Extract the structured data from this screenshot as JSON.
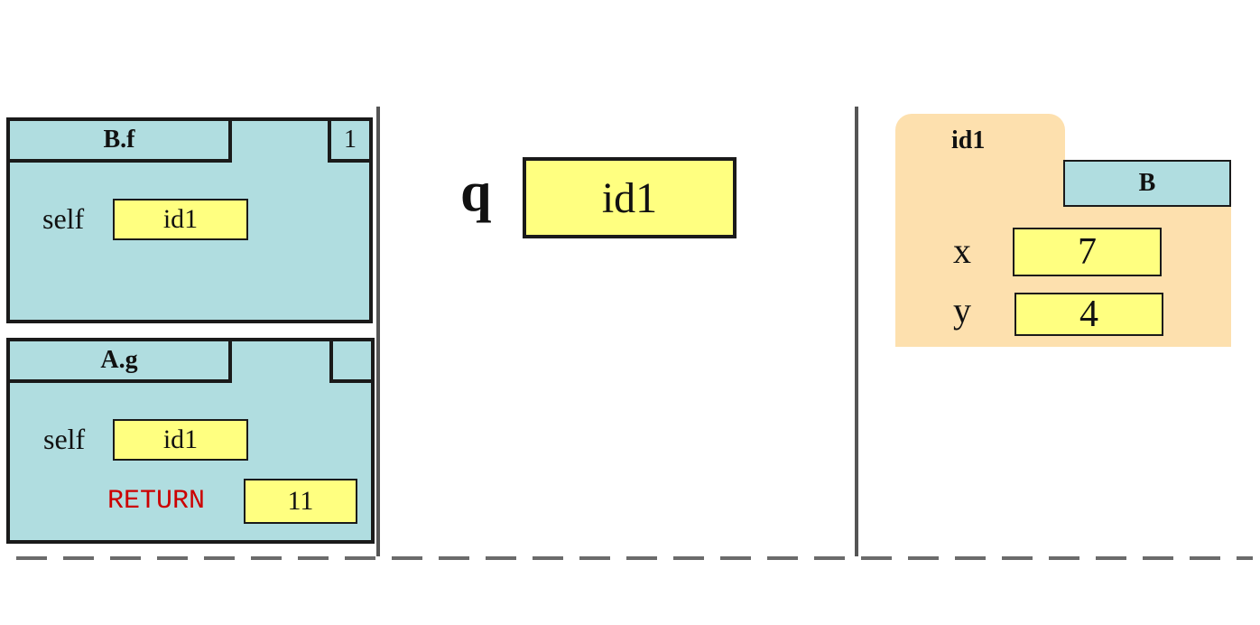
{
  "call_frames": [
    {
      "name": "B.f",
      "counter": "1",
      "variables": [
        {
          "name": "self",
          "value": "id1"
        }
      ]
    },
    {
      "name": "A.g",
      "counter": "",
      "variables": [
        {
          "name": "self",
          "value": "id1"
        }
      ],
      "return_label": "RETURN",
      "return_value": "11"
    }
  ],
  "global_space": {
    "variables": [
      {
        "name": "q",
        "value": "id1"
      }
    ]
  },
  "heap": {
    "objects": [
      {
        "id": "id1",
        "class": "B",
        "fields": [
          {
            "name": "x",
            "value": "7"
          },
          {
            "name": "y",
            "value": "4"
          }
        ]
      }
    ]
  },
  "colors": {
    "frame_fill": "#b0dde0",
    "value_fill": "#ffff80",
    "object_fill": "#fde0ae",
    "return_text": "#cc0000"
  }
}
